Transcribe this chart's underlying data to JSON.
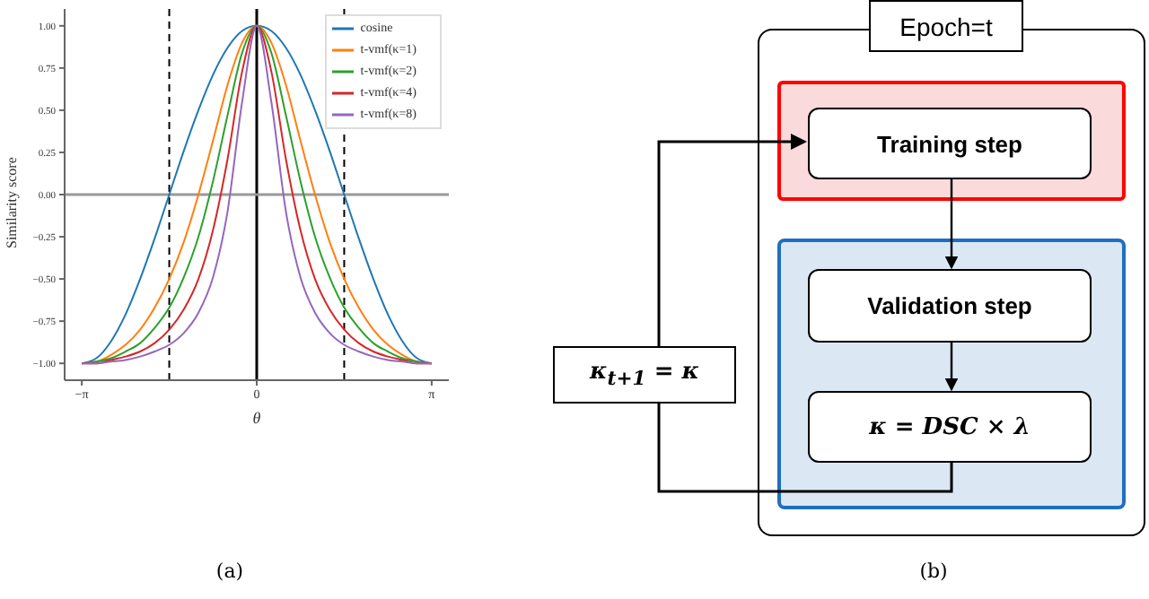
{
  "chart_data": [
    {
      "type": "line",
      "xlabel": "θ",
      "ylabel": "Similarity score",
      "x": [
        -3.142,
        -2.88,
        -2.618,
        -2.356,
        -2.094,
        -1.833,
        -1.571,
        -1.309,
        -1.047,
        -0.785,
        -0.524,
        -0.262,
        0,
        0.262,
        0.524,
        0.785,
        1.047,
        1.309,
        1.571,
        1.833,
        2.094,
        2.356,
        2.618,
        2.88,
        3.142
      ],
      "series": [
        {
          "name": "cosine",
          "color": "#1f77b4",
          "values": [
            -1,
            -0.97,
            -0.87,
            -0.71,
            -0.5,
            -0.26,
            0,
            0.26,
            0.5,
            0.71,
            0.87,
            0.97,
            1,
            0.97,
            0.87,
            0.71,
            0.5,
            0.26,
            0,
            -0.26,
            -0.5,
            -0.71,
            -0.87,
            -0.97,
            -1
          ]
        },
        {
          "name": "t-vmf(κ=1)",
          "color": "#ff7f0e",
          "values": [
            -1,
            -0.99,
            -0.95,
            -0.89,
            -0.8,
            -0.67,
            -0.5,
            -0.28,
            0,
            0.32,
            0.65,
            0.9,
            1,
            0.9,
            0.65,
            0.32,
            0,
            -0.28,
            -0.5,
            -0.67,
            -0.8,
            -0.89,
            -0.95,
            -0.99,
            -1
          ]
        },
        {
          "name": "t-vmf(κ=2)",
          "color": "#2ca02c",
          "values": [
            -1,
            -0.99,
            -0.97,
            -0.93,
            -0.88,
            -0.79,
            -0.67,
            -0.49,
            -0.25,
            0.08,
            0.47,
            0.84,
            1,
            0.84,
            0.47,
            0.08,
            -0.25,
            -0.49,
            -0.67,
            -0.79,
            -0.88,
            -0.93,
            -0.97,
            -0.99,
            -1
          ]
        },
        {
          "name": "t-vmf(κ=4)",
          "color": "#d62728",
          "values": [
            -1,
            -1,
            -0.98,
            -0.96,
            -0.93,
            -0.88,
            -0.8,
            -0.68,
            -0.5,
            -0.21,
            0.21,
            0.73,
            1,
            0.73,
            0.21,
            -0.21,
            -0.5,
            -0.68,
            -0.8,
            -0.88,
            -0.93,
            -0.96,
            -0.98,
            -1,
            -1
          ]
        },
        {
          "name": "t-vmf(κ=8)",
          "color": "#9467bd",
          "values": [
            -1,
            -1,
            -0.99,
            -0.98,
            -0.96,
            -0.93,
            -0.89,
            -0.82,
            -0.7,
            -0.49,
            -0.1,
            0.55,
            1,
            0.55,
            -0.1,
            -0.49,
            -0.7,
            -0.82,
            -0.89,
            -0.93,
            -0.96,
            -0.98,
            -0.99,
            -1,
            -1
          ]
        }
      ],
      "xlim": [
        -3.45,
        3.45
      ],
      "xticks": [
        {
          "value": -3.142,
          "label": "−π"
        },
        {
          "value": 0,
          "label": "0"
        },
        {
          "value": 3.142,
          "label": "π"
        }
      ],
      "ylim": [
        -1.1,
        1.1
      ],
      "yticks": [
        {
          "value": -1,
          "label": "−1.00"
        },
        {
          "value": -0.75,
          "label": "−0.75"
        },
        {
          "value": -0.5,
          "label": "−0.50"
        },
        {
          "value": -0.25,
          "label": "−0.25"
        },
        {
          "value": 0,
          "label": "0.00"
        },
        {
          "value": 0.25,
          "label": "0.25"
        },
        {
          "value": 0.5,
          "label": "0.50"
        },
        {
          "value": 0.75,
          "label": "0.75"
        },
        {
          "value": 1,
          "label": "1.00"
        }
      ],
      "ref_lines": [
        {
          "axis": "x",
          "value": -1.571,
          "color": "#000000",
          "line_style": "dashed"
        },
        {
          "axis": "x",
          "value": 1.571,
          "color": "#000000",
          "line_style": "dashed"
        },
        {
          "axis": "x",
          "value": 0,
          "color": "#000000",
          "line_style": "solid"
        },
        {
          "axis": "y",
          "value": 0,
          "color": "#999999",
          "line_style": "solid"
        }
      ],
      "legend": "top right",
      "grid": false,
      "marker": "none",
      "line_style": "solid",
      "annotations": [
        "(a)"
      ]
    },
    {
      "type": "other",
      "annotations": [
        "Epoch=t",
        "Training step",
        "Validation step",
        "κ = DSC × λ",
        "κ$_{t+1}$ = κ",
        "(b)"
      ]
    }
  ]
}
